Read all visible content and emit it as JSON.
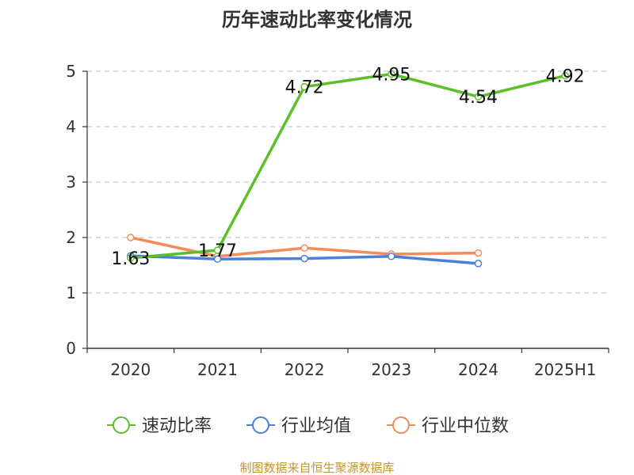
{
  "chart_data": {
    "type": "line",
    "title": "历年速动比率变化情况",
    "categories": [
      "2020",
      "2021",
      "2022",
      "2023",
      "2024",
      "2025H1"
    ],
    "ylim": [
      0,
      5
    ],
    "yticks": [
      "0",
      "1",
      "2",
      "3",
      "4",
      "5"
    ],
    "grid": true,
    "legend_position": "bottom",
    "series": [
      {
        "name": "速动比率",
        "color": "#5cbf2a",
        "values": [
          1.63,
          1.77,
          4.72,
          4.95,
          4.54,
          4.92
        ],
        "labels": [
          "1.63",
          "1.77",
          "4.72",
          "4.95",
          "4.54",
          "4.92"
        ]
      },
      {
        "name": "行业均值",
        "color": "#4a7fda",
        "values": [
          1.67,
          1.61,
          1.62,
          1.66,
          1.53,
          null
        ]
      },
      {
        "name": "行业中位数",
        "color": "#f28c5a",
        "values": [
          2.0,
          1.66,
          1.81,
          1.7,
          1.72,
          null
        ]
      }
    ]
  },
  "source": "制图数据来自恒生聚源数据库"
}
